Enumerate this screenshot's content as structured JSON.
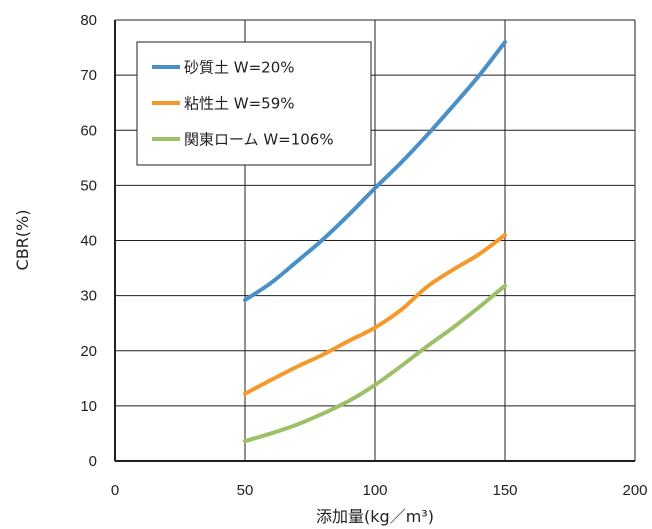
{
  "chart_data": {
    "type": "line",
    "xlabel": "添加量(kg／m³)",
    "ylabel": "CBR(%)",
    "xlim": [
      0,
      200
    ],
    "ylim": [
      0,
      80
    ],
    "xticks": [
      "0",
      "50",
      "100",
      "150",
      "200"
    ],
    "yticks": [
      "0",
      "10",
      "20",
      "30",
      "40",
      "50",
      "60",
      "70",
      "80"
    ],
    "grid": true,
    "legend": "top-left",
    "series": [
      {
        "name": "砂質土 W=20%",
        "color": "#4a90c8",
        "x": [
          50,
          60,
          70,
          80,
          90,
          100,
          110,
          120,
          130,
          140,
          150
        ],
        "y": [
          29.2,
          32.3,
          36.2,
          40.2,
          44.7,
          49.5,
          54.1,
          59.1,
          64.4,
          69.9,
          76.0
        ]
      },
      {
        "name": "粘性土 W=59%",
        "color": "#f39a2b",
        "x": [
          50,
          60,
          70,
          80,
          90,
          100,
          110,
          120,
          130,
          140,
          150
        ],
        "y": [
          12.2,
          14.7,
          17.1,
          19.3,
          21.8,
          24.2,
          27.4,
          31.6,
          34.7,
          37.5,
          41.0
        ]
      },
      {
        "name": "関東ローム W=106%",
        "color": "#9dbf66",
        "x": [
          50,
          60,
          70,
          80,
          90,
          100,
          110,
          120,
          130,
          140,
          150
        ],
        "y": [
          3.6,
          5.0,
          6.6,
          8.6,
          10.9,
          13.8,
          17.2,
          20.8,
          24.2,
          27.9,
          31.8
        ]
      }
    ]
  }
}
